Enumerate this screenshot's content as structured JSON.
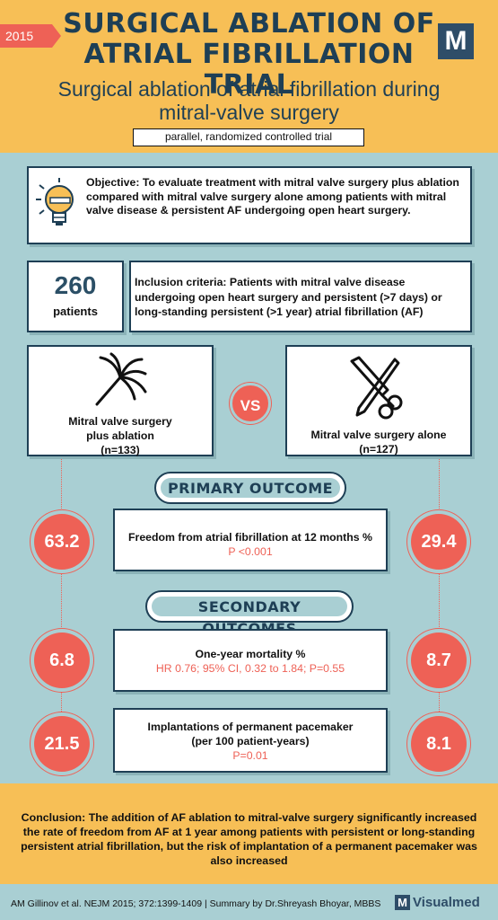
{
  "header": {
    "year": "2015",
    "title_line1": "SURGICAL ABLATION OF",
    "title_line2": "ATRIAL FIBRILLATION TRIAL",
    "logo": "M",
    "subtitle_line1": "Surgical ablation of atrial fibrillation during",
    "subtitle_line2": "mitral-valve surgery",
    "design": "parallel, randomized controlled trial"
  },
  "objective": {
    "icon": "lightbulb-icon",
    "text": "Objective: To evaluate treatment with mitral valve surgery plus ablation compared with mitral valve surgery alone among patients with mitral valve disease & persistent AF undergoing open heart surgery."
  },
  "population": {
    "count": "260",
    "label": "patients",
    "inclusion": "Inclusion criteria: Patients with mitral valve disease undergoing open heart surgery and persistent (>7 days) or long-standing persistent (>1 year) atrial fibrillation (AF)"
  },
  "arms": {
    "a_line1": "Mitral valve surgery",
    "a_line2": "plus ablation",
    "a_n": "(n=133)",
    "a_icon": "ablation-catheter-icon",
    "vs": "VS",
    "b_line1": "Mitral valve surgery alone",
    "b_n": "(n=127)",
    "b_icon": "scalpel-scissors-icon"
  },
  "primary": {
    "heading": "PRIMARY OUTCOME",
    "title": "Freedom from atrial fibrillation at 12 months %",
    "stat": "P <0.001",
    "a": "63.2",
    "b": "29.4"
  },
  "secondary": {
    "heading": "SECONDARY OUTCOMES",
    "items": [
      {
        "title": "One-year mortality %",
        "title2": "",
        "stat": "HR 0.76; 95% CI, 0.32 to 1.84; P=0.55",
        "a": "6.8",
        "b": "8.7"
      },
      {
        "title": "Implantations of permanent pacemaker",
        "title2": "(per 100 patient-years)",
        "stat": "P=0.01",
        "a": "21.5",
        "b": "8.1"
      }
    ]
  },
  "conclusion": "Conclusion: The addition of AF ablation to mitral-valve surgery significantly increased the rate of freedom from AF at 1 year among patients with persistent or long-standing persistent atrial fibrillation, but the risk of implantation of a permanent pacemaker was also increased",
  "footer": {
    "citation": "AM Gillinov et al.  NEJM 2015; 372:1399-1409 | Summary by Dr.Shreyash Bhoyar, MBBS",
    "logo": "M",
    "brand": "Visualmed"
  },
  "colors": {
    "navy": "#1e3f55",
    "coral": "#ee6156",
    "yellow": "#f7bf56",
    "teal": "#a9cfd3"
  }
}
